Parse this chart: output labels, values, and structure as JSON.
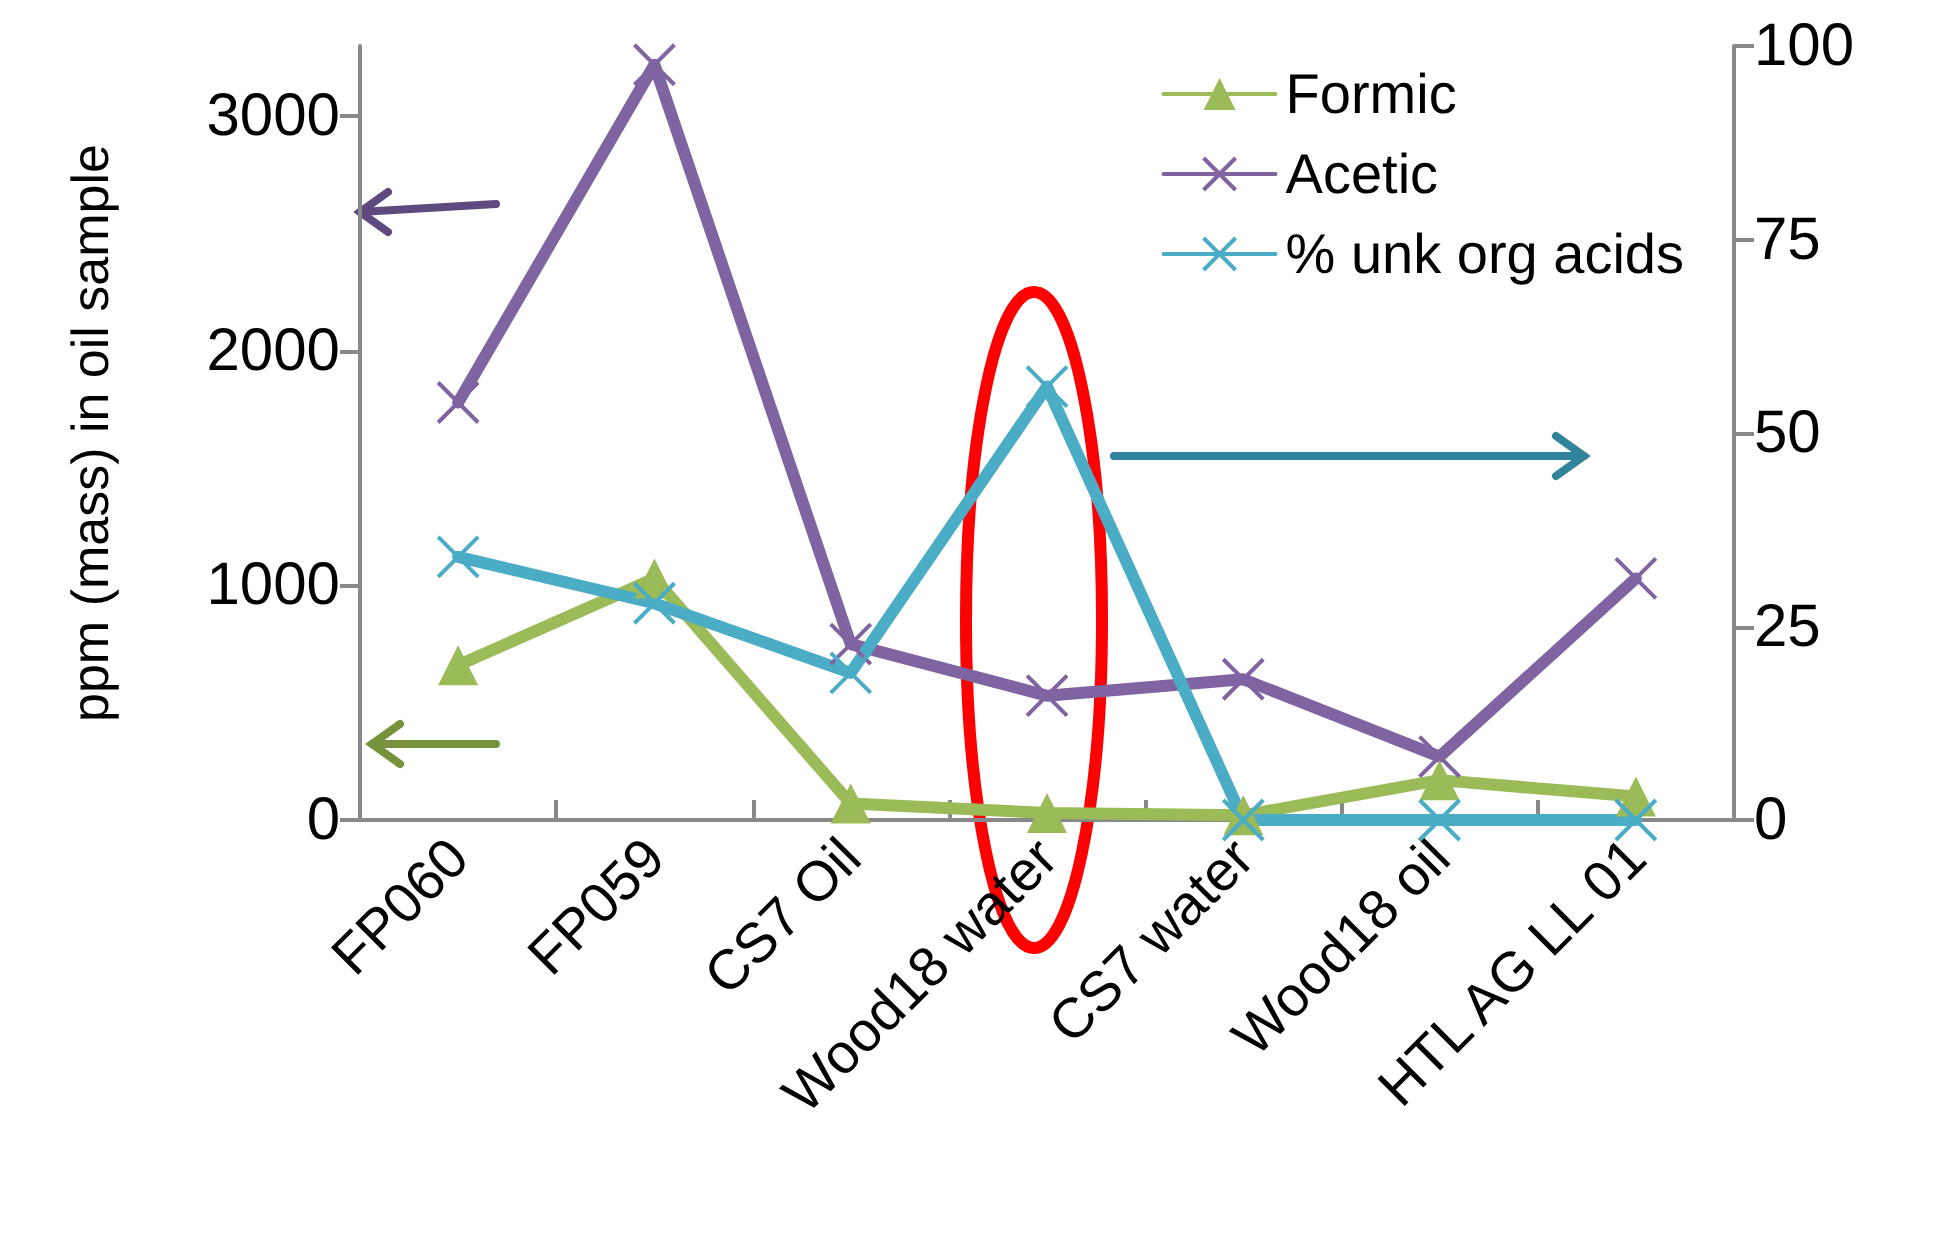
{
  "chart_data": {
    "type": "line",
    "ylabel": "ppm (mass) in oil sample",
    "categories": [
      "FP060",
      "FP059",
      "CS7 Oil",
      "Wood18 water",
      "CS7 water",
      "Wood18 oil",
      "HTL AG LL 01"
    ],
    "series": [
      {
        "name": "Formic",
        "color": "#9bbb59",
        "marker": "triangle",
        "values": [
          660,
          1030,
          70,
          30,
          20,
          170,
          100
        ]
      },
      {
        "name": "Acetic",
        "color": "#8064a2",
        "marker": "cross",
        "values": [
          1780,
          3220,
          750,
          530,
          600,
          270,
          1030
        ]
      },
      {
        "name": "% unk org acids",
        "color": "#4bacc6",
        "marker": "cross",
        "axis": "y2",
        "values": [
          34,
          28,
          19,
          56,
          0,
          0,
          0
        ]
      }
    ],
    "ylim": [
      0,
      3300
    ],
    "yticks": [
      0,
      1000,
      2000,
      3000
    ],
    "y2lim": [
      0,
      100
    ],
    "y2ticks": [
      0,
      25,
      50,
      75,
      100
    ],
    "grid": false,
    "legend": "top right",
    "line_style": "solid"
  }
}
